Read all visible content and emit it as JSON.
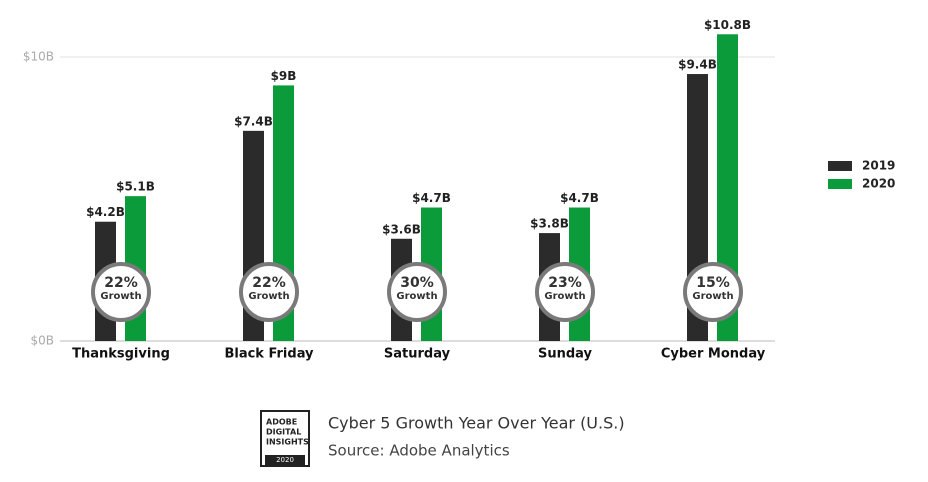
{
  "chart_data": {
    "type": "bar",
    "categories": [
      "Thanksgiving",
      "Black Friday",
      "Saturday",
      "Sunday",
      "Cyber Monday"
    ],
    "series": [
      {
        "name": "2019",
        "color": "#2b2b2b",
        "values": [
          4.2,
          7.4,
          3.6,
          3.8,
          9.4
        ],
        "value_labels": [
          "$4.2B",
          "$7.4B",
          "$3.6B",
          "$3.8B",
          "$9.4B"
        ]
      },
      {
        "name": "2020",
        "color": "#0c9b3b",
        "values": [
          5.1,
          9,
          4.7,
          4.7,
          10.8
        ],
        "value_labels": [
          "$5.1B",
          "$9B",
          "$4.7B",
          "$4.7B",
          "$10.8B"
        ]
      }
    ],
    "ylim": [
      0,
      10
    ],
    "yticks": [
      {
        "value": 0,
        "label": "$0B"
      },
      {
        "value": 10,
        "label": "$10B"
      }
    ],
    "grid": true,
    "legend": "right",
    "growth_labels": [
      "22%",
      "22%",
      "30%",
      "23%",
      "15%"
    ],
    "growth_caption": "Growth"
  },
  "footer": {
    "logo": [
      "ADOBE",
      "DIGITAL",
      "INSIGHTS"
    ],
    "logo_year": "2020",
    "title": "Cyber 5 Growth Year Over Year (U.S.)",
    "source": "Source: Adobe Analytics"
  }
}
